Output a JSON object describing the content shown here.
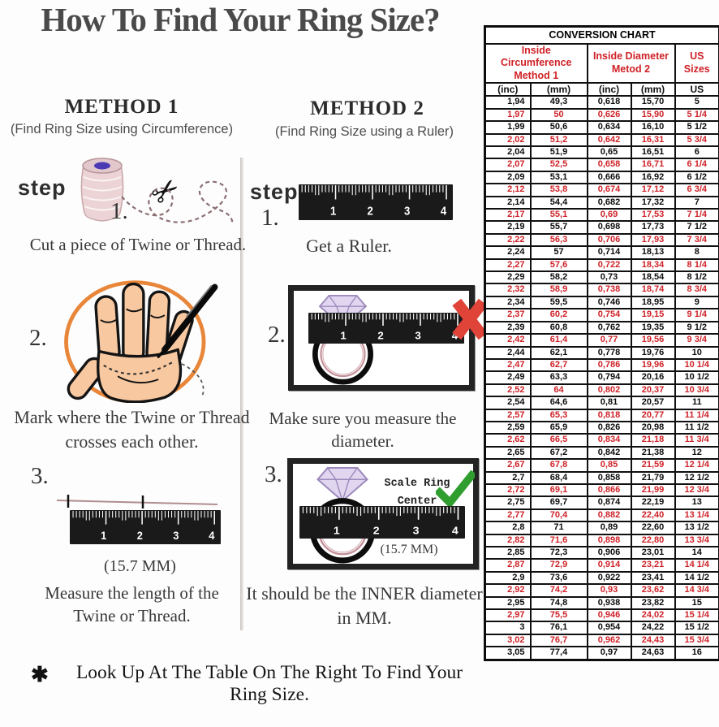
{
  "page": {
    "title": "How To Find Your Ring Size?",
    "footer_marker": "✱",
    "footer_note": "Look Up At The Table On The Right To Find Your Ring Size."
  },
  "method1": {
    "heading": "METHOD 1",
    "subheading": "(Find Ring Size using Circumference)",
    "step_label": "step",
    "step1_number": "1.",
    "step1_text": "Cut a piece of Twine or Thread.",
    "step2_number": "2.",
    "step2_text": "Mark where the Twine or Thread crosses each other.",
    "step3_number": "3.",
    "step3_measurement": "(15.7 MM)",
    "step3_text": "Measure the length of the Twine or Thread."
  },
  "method2": {
    "heading": "METHOD 2",
    "subheading": "(Find Ring Size using a Ruler)",
    "step_label": "step",
    "step1_number": "1.",
    "step1_text": "Get a Ruler.",
    "step2_number": "2.",
    "step2_text": "Make sure you measure the diameter.",
    "step3_number": "3.",
    "step3_scale_note": "Scale Ring Center",
    "step3_measurement": "(15.7 MM)",
    "step3_text": "It should be the INNER diameter in MM."
  },
  "illustrations": {
    "ruler_numbers": [
      "1",
      "2",
      "3",
      "4"
    ],
    "scissors_glyph": "✂",
    "accent_orange": "#e8863a",
    "skin_color": "#f8c8a0",
    "red_x_color": "#e04438",
    "green_check_color": "#2f9e2f",
    "diamond_color": "#e0d6f0"
  },
  "conversion_table": {
    "title": "CONVERSION CHART",
    "group1_line1": "Inside Circumference",
    "group1_line2": "Method 1",
    "group2_line1": "Inside Diameter",
    "group2_line2": "Metod 2",
    "group3": "US Sizes",
    "sub_headers": [
      "(inc)",
      "(mm)",
      "(inc)",
      "(mm)",
      "US"
    ],
    "highlight_color": "#cf2127",
    "highlight_rule": "every second row (1/4 and 3/4 US sizes) is red",
    "rows": [
      [
        "1,94",
        "49,3",
        "0,618",
        "15,70",
        "5"
      ],
      [
        "1,97",
        "50",
        "0,626",
        "15,90",
        "5 1/4"
      ],
      [
        "1,99",
        "50,6",
        "0,634",
        "16,10",
        "5 1/2"
      ],
      [
        "2,02",
        "51,2",
        "0,642",
        "16,31",
        "5 3/4"
      ],
      [
        "2,04",
        "51,9",
        "0,65",
        "16,51",
        "6"
      ],
      [
        "2,07",
        "52,5",
        "0,658",
        "16,71",
        "6 1/4"
      ],
      [
        "2,09",
        "53,1",
        "0,666",
        "16,92",
        "6 1/2"
      ],
      [
        "2,12",
        "53,8",
        "0,674",
        "17,12",
        "6 3/4"
      ],
      [
        "2,14",
        "54,4",
        "0,682",
        "17,32",
        "7"
      ],
      [
        "2,17",
        "55,1",
        "0,69",
        "17,53",
        "7 1/4"
      ],
      [
        "2,19",
        "55,7",
        "0,698",
        "17,73",
        "7 1/2"
      ],
      [
        "2,22",
        "56,3",
        "0,706",
        "17,93",
        "7 3/4"
      ],
      [
        "2,24",
        "57",
        "0,714",
        "18,13",
        "8"
      ],
      [
        "2,27",
        "57,6",
        "0,722",
        "18,34",
        "8 1/4"
      ],
      [
        "2,29",
        "58,2",
        "0,73",
        "18,54",
        "8 1/2"
      ],
      [
        "2,32",
        "58,9",
        "0,738",
        "18,74",
        "8 3/4"
      ],
      [
        "2,34",
        "59,5",
        "0,746",
        "18,95",
        "9"
      ],
      [
        "2,37",
        "60,2",
        "0,754",
        "19,15",
        "9 1/4"
      ],
      [
        "2,39",
        "60,8",
        "0,762",
        "19,35",
        "9 1/2"
      ],
      [
        "2,42",
        "61,4",
        "0,77",
        "19,56",
        "9 3/4"
      ],
      [
        "2,44",
        "62,1",
        "0,778",
        "19,76",
        "10"
      ],
      [
        "2,47",
        "62,7",
        "0,786",
        "19,96",
        "10 1/4"
      ],
      [
        "2,49",
        "63,3",
        "0,794",
        "20,16",
        "10 1/2"
      ],
      [
        "2,52",
        "64",
        "0,802",
        "20,37",
        "10 3/4"
      ],
      [
        "2,54",
        "64,6",
        "0,81",
        "20,57",
        "11"
      ],
      [
        "2,57",
        "65,3",
        "0,818",
        "20,77",
        "11 1/4"
      ],
      [
        "2,59",
        "65,9",
        "0,826",
        "20,98",
        "11 1/2"
      ],
      [
        "2,62",
        "66,5",
        "0,834",
        "21,18",
        "11 3/4"
      ],
      [
        "2,65",
        "67,2",
        "0,842",
        "21,38",
        "12"
      ],
      [
        "2,67",
        "67,8",
        "0,85",
        "21,59",
        "12 1/4"
      ],
      [
        "2,7",
        "68,4",
        "0,858",
        "21,79",
        "12 1/2"
      ],
      [
        "2,72",
        "69,1",
        "0,866",
        "21,99",
        "12 3/4"
      ],
      [
        "2,75",
        "69,7",
        "0,874",
        "22,19",
        "13"
      ],
      [
        "2,77",
        "70,4",
        "0,882",
        "22,40",
        "13 1/4"
      ],
      [
        "2,8",
        "71",
        "0,89",
        "22,60",
        "13 1/2"
      ],
      [
        "2,82",
        "71,6",
        "0,898",
        "22,80",
        "13 3/4"
      ],
      [
        "2,85",
        "72,3",
        "0,906",
        "23,01",
        "14"
      ],
      [
        "2,87",
        "72,9",
        "0,914",
        "23,21",
        "14 1/4"
      ],
      [
        "2,9",
        "73,6",
        "0,922",
        "23,41",
        "14 1/2"
      ],
      [
        "2,92",
        "74,2",
        "0,93",
        "23,62",
        "14 3/4"
      ],
      [
        "2,95",
        "74,8",
        "0,938",
        "23,82",
        "15"
      ],
      [
        "2,97",
        "75,5",
        "0,946",
        "24,02",
        "15 1/4"
      ],
      [
        "3",
        "76,1",
        "0,954",
        "24,22",
        "15 1/2"
      ],
      [
        "3,02",
        "76,7",
        "0,962",
        "24,43",
        "15 3/4"
      ],
      [
        "3,05",
        "77,4",
        "0,97",
        "24,63",
        "16"
      ]
    ]
  }
}
